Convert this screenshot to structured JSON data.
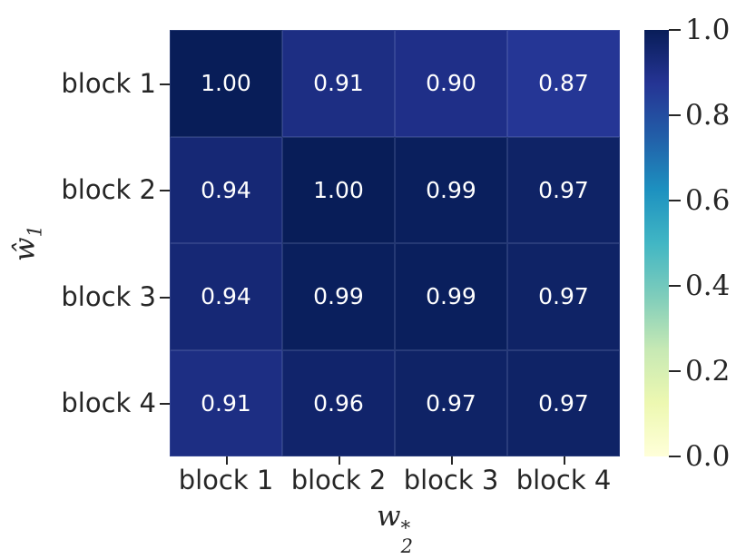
{
  "chart_data": {
    "type": "heatmap",
    "x_categories": [
      "block 1",
      "block 2",
      "block 3",
      "block 4"
    ],
    "y_categories": [
      "block 1",
      "block 2",
      "block 3",
      "block 4"
    ],
    "values": [
      [
        1.0,
        0.91,
        0.9,
        0.87
      ],
      [
        0.94,
        1.0,
        0.99,
        0.97
      ],
      [
        0.94,
        0.99,
        0.99,
        0.97
      ],
      [
        0.91,
        0.96,
        0.97,
        0.97
      ]
    ],
    "xlabel": {
      "base": "w",
      "sub": "2",
      "sup": "*"
    },
    "ylabel": {
      "base": "ŵ",
      "sub": "1"
    },
    "value_format_decimals": 2,
    "colorbar": {
      "min": 0.0,
      "max": 1.0,
      "tick_labels": [
        "1.0",
        "0.8",
        "0.6",
        "0.4",
        "0.2",
        "0.0"
      ],
      "position": "right"
    },
    "colormap": {
      "name": "YlGnBu",
      "stops": [
        "#ffffd9",
        "#edf8b1",
        "#c7e9b4",
        "#7fcdbb",
        "#41b6c4",
        "#1d91c0",
        "#225ea8",
        "#253494",
        "#081d58"
      ]
    },
    "colors": {
      "cell_text": "#ffffff",
      "tick_text": "#262626",
      "background": "#ffffff"
    },
    "legend": "none",
    "grid": "off"
  }
}
